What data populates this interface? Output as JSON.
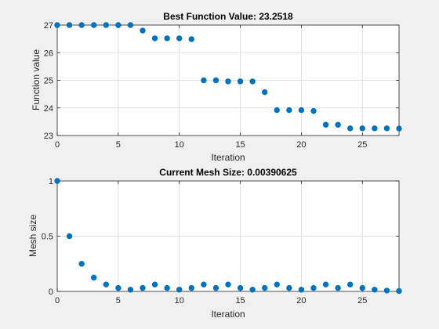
{
  "colors": {
    "figure_background": "#f0f0f0",
    "axes_background": "#ffffff",
    "axis_line": "#262626",
    "grid": "#dfdfdf",
    "marker": "#0072bd"
  },
  "chart_data": [
    {
      "type": "scatter",
      "title": "Best Function Value: 23.2518",
      "xlabel": "Iteration",
      "ylabel": "Function value",
      "xlim": [
        0,
        28
      ],
      "ylim": [
        23,
        27
      ],
      "xticks": [
        0,
        5,
        10,
        15,
        20,
        25
      ],
      "yticks": [
        23,
        24,
        25,
        26,
        27
      ],
      "grid": true,
      "legend": "none",
      "series": [
        {
          "x": [
            0,
            1,
            2,
            3,
            4,
            5,
            6,
            7,
            8,
            9,
            10,
            11,
            12,
            13,
            14,
            15,
            16,
            17,
            18,
            19,
            20,
            21,
            22,
            23,
            24,
            25,
            26,
            27,
            28
          ],
          "y": [
            27.0,
            27.0,
            27.0,
            27.0,
            27.0,
            27.0,
            27.0,
            26.8,
            26.52,
            26.52,
            26.52,
            26.49,
            25.0,
            25.0,
            24.96,
            24.96,
            24.96,
            24.57,
            23.92,
            23.92,
            23.92,
            23.89,
            23.39,
            23.39,
            23.26,
            23.26,
            23.26,
            23.26,
            23.2518
          ]
        }
      ]
    },
    {
      "type": "scatter",
      "title": "Current Mesh Size: 0.00390625",
      "xlabel": "Iteration",
      "ylabel": "Mesh size",
      "xlim": [
        0,
        28
      ],
      "ylim": [
        0,
        1
      ],
      "xticks": [
        0,
        5,
        10,
        15,
        20,
        25
      ],
      "yticks": [
        0,
        0.5,
        1
      ],
      "grid": true,
      "legend": "none",
      "series": [
        {
          "x": [
            0,
            1,
            2,
            3,
            4,
            5,
            6,
            7,
            8,
            9,
            10,
            11,
            12,
            13,
            14,
            15,
            16,
            17,
            18,
            19,
            20,
            21,
            22,
            23,
            24,
            25,
            26,
            27,
            28
          ],
          "y": [
            1,
            0.5,
            0.25,
            0.125,
            0.0625,
            0.03125,
            0.015625,
            0.03125,
            0.0625,
            0.03125,
            0.015625,
            0.03125,
            0.0625,
            0.03125,
            0.0625,
            0.03125,
            0.015625,
            0.03125,
            0.0625,
            0.03125,
            0.015625,
            0.03125,
            0.0625,
            0.03125,
            0.0625,
            0.03125,
            0.015625,
            0.0078125,
            0.00390625
          ]
        }
      ]
    }
  ]
}
